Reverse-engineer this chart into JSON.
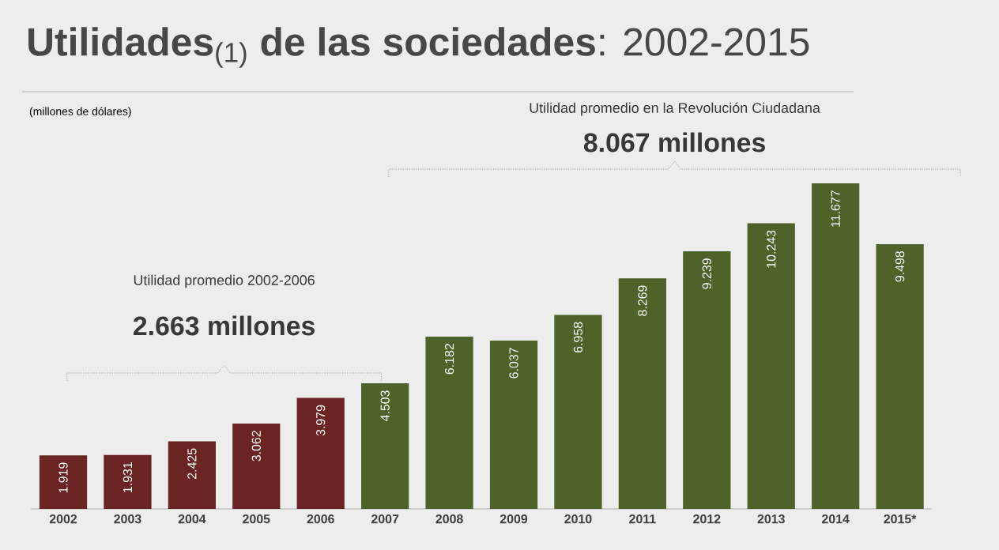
{
  "chart_data": {
    "type": "bar",
    "title": "**Utilidades**$_{(1)}$ **de las sociedades**: 2002-2015",
    "subtitle": "(millones de dólares)",
    "annotations": [
      "Utilidad promedio 2002-2006",
      "2.663 millones",
      "Utilidad promedio en la Revolución Ciudadana",
      "8.067 millones"
    ],
    "categories": [
      "2002",
      "2003",
      "2004",
      "2005",
      "2006",
      "2007",
      "2008",
      "2009",
      "2010",
      "2011",
      "2012",
      "2013",
      "2014",
      "2015*"
    ],
    "values": [
      1919,
      1931,
      2425,
      3062,
      3979,
      4503,
      6182,
      6037,
      6958,
      8269,
      9239,
      10243,
      11677,
      9498
    ],
    "value_labels": [
      "1.919",
      "1.931",
      "2.425",
      "3.062",
      "3.979",
      "4.503",
      "6.182",
      "6.037",
      "6.958",
      "8.269",
      "9.239",
      "10.243",
      "11.677",
      "9.498"
    ],
    "colors": [
      "#6b2424",
      "#6b2424",
      "#6b2424",
      "#6b2424",
      "#6b2424",
      "#4e6229",
      "#4e6229",
      "#4e6229",
      "#4e6229",
      "#4e6229",
      "#4e6229",
      "#4e6229",
      "#4e6229",
      "#4e6229"
    ]
  }
}
